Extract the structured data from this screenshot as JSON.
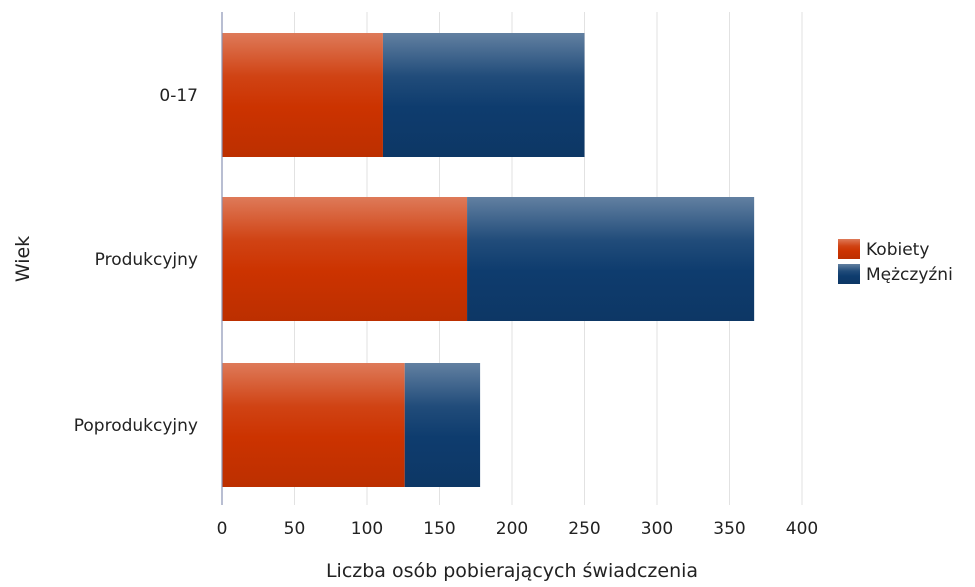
{
  "chart_data": {
    "type": "bar",
    "orientation": "horizontal",
    "stacked": true,
    "title": "",
    "xlabel": "Liczba osób pobierających świadczenia",
    "ylabel": "Wiek",
    "xlim": [
      0,
      400
    ],
    "x_ticks": [
      0,
      50,
      100,
      150,
      200,
      250,
      300,
      350,
      400
    ],
    "grid": true,
    "legend_position": "right",
    "categories": [
      "0-17",
      "Produkcyjny",
      "Poprodukcyjny"
    ],
    "series": [
      {
        "name": "Kobiety",
        "color": "#cc3300",
        "values": [
          111,
          169,
          126
        ]
      },
      {
        "name": "Mężczyźni",
        "color": "#0e3c6e",
        "values": [
          139,
          198,
          52
        ]
      }
    ]
  }
}
